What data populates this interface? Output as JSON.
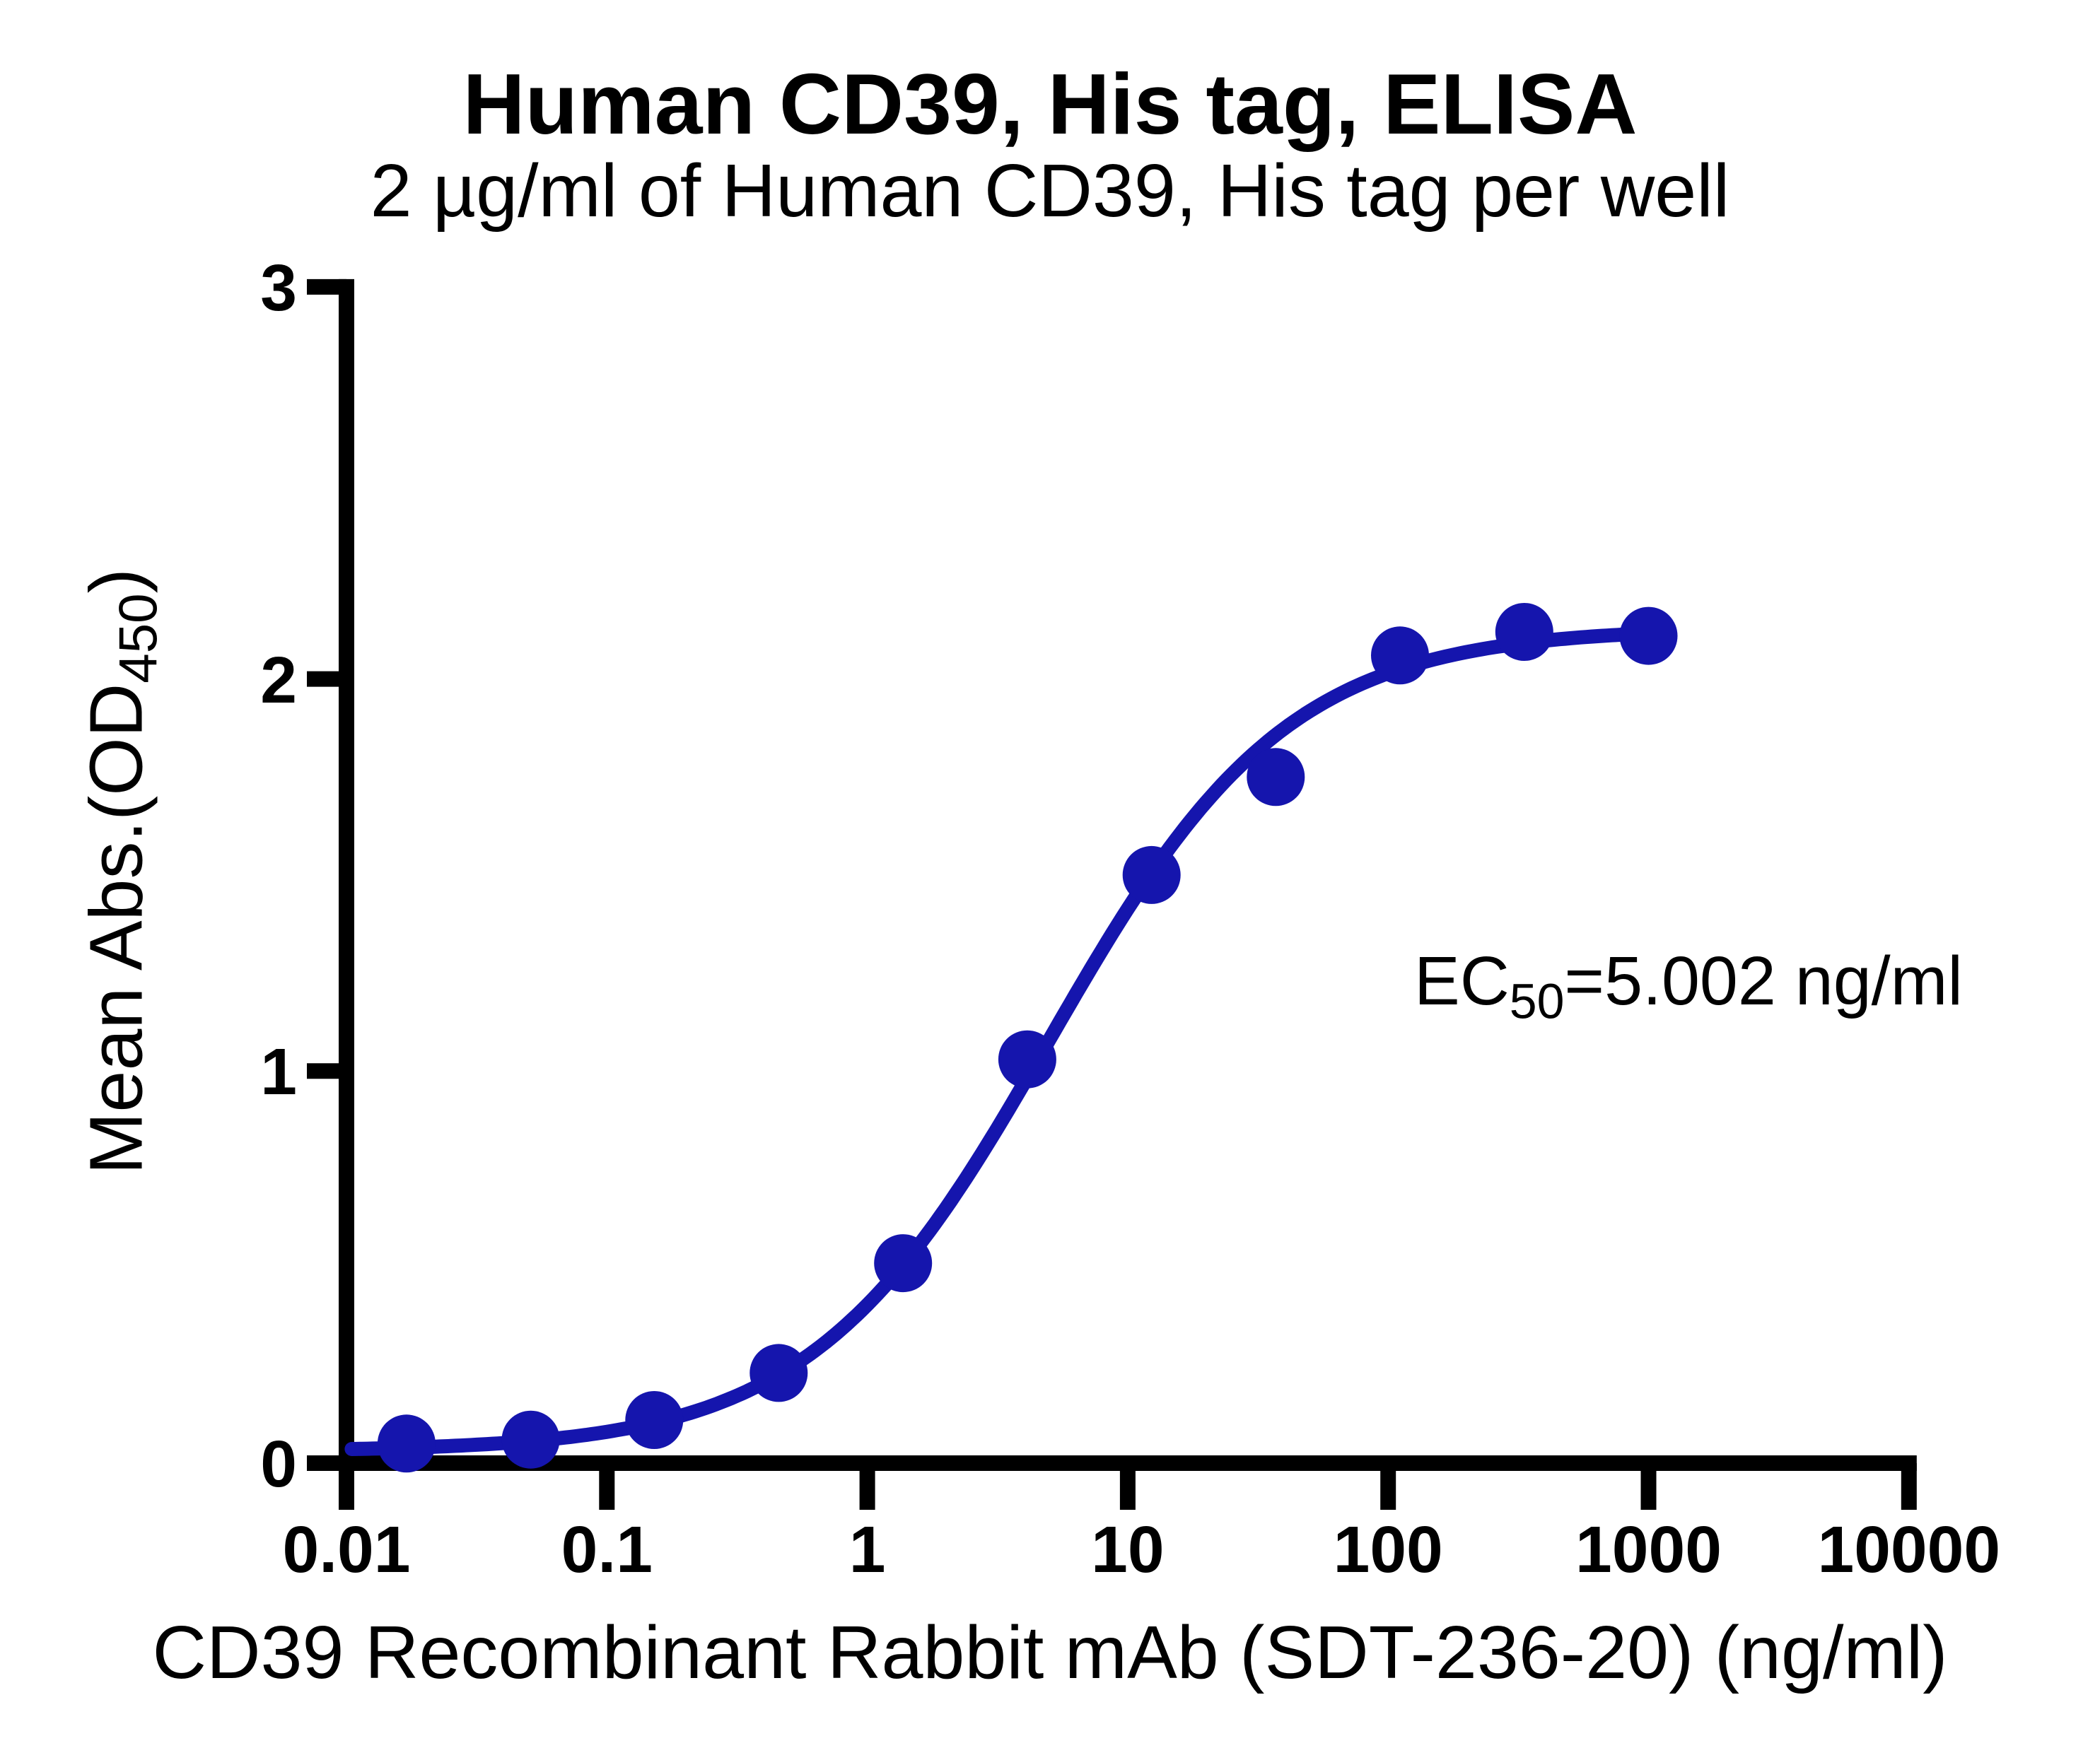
{
  "header": {
    "title": "Human CD39, His tag, ELISA",
    "subtitle": "2 µg/ml of Human CD39, His tag per well"
  },
  "annotation": {
    "prefix": "EC",
    "subscript": "50",
    "suffix": "=5.002 ng/ml"
  },
  "x_axis": {
    "label": "CD39 Recombinant Rabbit mAb (SDT-236-20) (ng/ml)",
    "scale": "log",
    "tick_labels": [
      "0.01",
      "0.1",
      "1",
      "10",
      "100",
      "1000",
      "10000"
    ],
    "tick_values": [
      0.01,
      0.1,
      1,
      10,
      100,
      1000,
      10000
    ]
  },
  "y_axis": {
    "label_main": "Mean Abs.(OD",
    "label_sub": "450",
    "label_close": ")",
    "tick_labels": [
      "0",
      "1",
      "2",
      "3"
    ],
    "tick_values": [
      0,
      1,
      2,
      3
    ],
    "range": [
      0,
      3
    ]
  },
  "chart_data": {
    "type": "scatter",
    "title": "Human CD39, His tag, ELISA",
    "subtitle": "2 µg/ml of Human CD39, His tag per well",
    "xlabel": "CD39 Recombinant Rabbit mAb (SDT-236-20) (ng/ml)",
    "ylabel": "Mean Abs.(OD450)",
    "x_scale": "log",
    "xlim": [
      0.01,
      10000
    ],
    "ylim": [
      0,
      3
    ],
    "x": [
      0.017,
      0.051,
      0.152,
      0.457,
      1.372,
      4.115,
      12.35,
      37.04,
      111.1,
      333.3,
      1000
    ],
    "y": [
      0.05,
      0.06,
      0.11,
      0.23,
      0.51,
      1.03,
      1.5,
      1.75,
      2.06,
      2.12,
      2.11
    ],
    "fit": {
      "model": "4PL",
      "bottom": 0.03,
      "top": 2.13,
      "ec50": 5.002,
      "hill": 0.95,
      "curve_log_range": [
        -1.98,
        3.0
      ]
    },
    "ec50_text": "EC50=5.002 ng/ml"
  },
  "colors": {
    "accent": "#1515AD",
    "axis": "#000000",
    "background": "#FFFFFF"
  }
}
